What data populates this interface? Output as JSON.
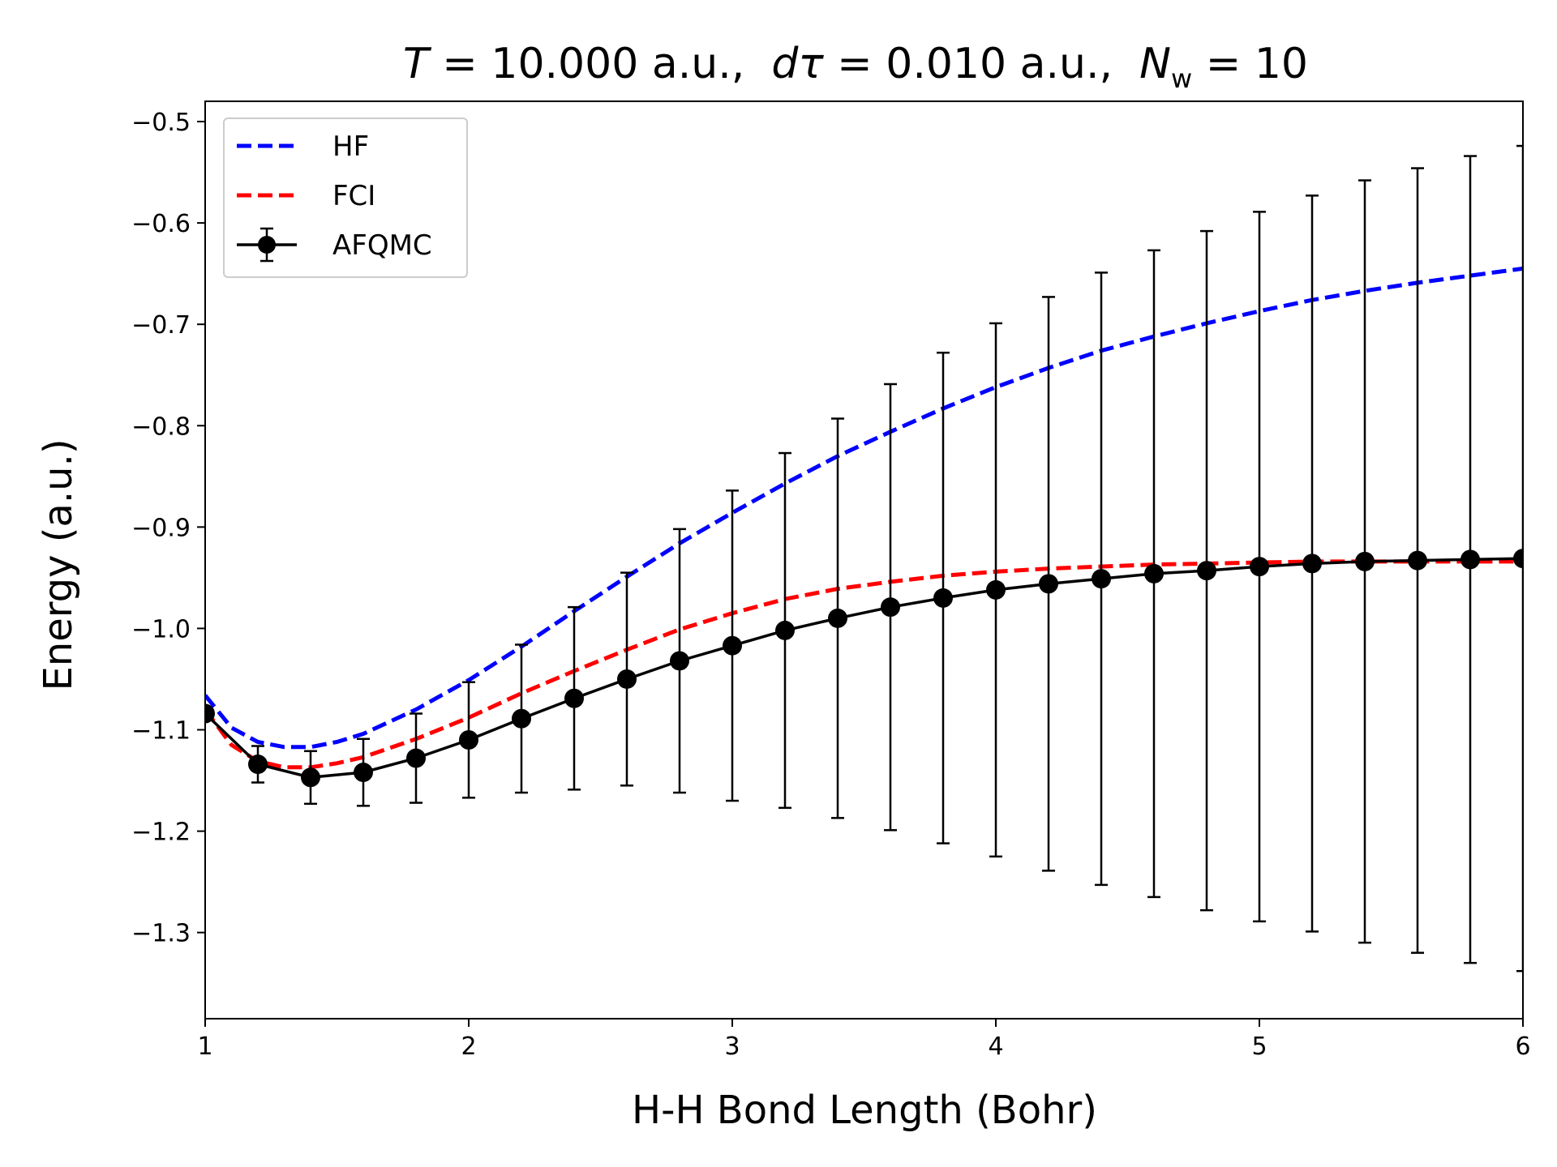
{
  "chart_data": {
    "type": "line",
    "title": {
      "T_symbol": "T",
      "T_value": " = 10.000 a.u.,  ",
      "dtau_d": "d",
      "dtau_tau": "τ",
      "dtau_value": " = 0.010 a.u.,  ",
      "Nw_symbol": "N",
      "Nw_sub": "w",
      "Nw_value": " = 10"
    },
    "xlabel": "H-H Bond Length (Bohr)",
    "ylabel": "Energy (a.u.)",
    "xlim": [
      1,
      6
    ],
    "ylim": [
      -1.385,
      -0.48
    ],
    "xticks": [
      1,
      2,
      3,
      4,
      5,
      6
    ],
    "xtick_labels": [
      "1",
      "2",
      "3",
      "4",
      "5",
      "6"
    ],
    "yticks": [
      -0.5,
      -0.6,
      -0.7,
      -0.8,
      -0.9,
      -1.0,
      -1.1,
      -1.2,
      -1.3
    ],
    "ytick_labels": [
      "−0.5",
      "−0.6",
      "−0.7",
      "−0.8",
      "−0.9",
      "−1.0",
      "−1.1",
      "−1.2",
      "−1.3"
    ],
    "grid": false,
    "legend_position": "top-left",
    "series": [
      {
        "name": "HF",
        "style": "dashed",
        "color": "#0000ff",
        "x": [
          1.0,
          1.1,
          1.2,
          1.3,
          1.4,
          1.5,
          1.6,
          1.8,
          2.0,
          2.2,
          2.4,
          2.6,
          2.8,
          3.0,
          3.2,
          3.4,
          3.6,
          3.8,
          4.0,
          4.2,
          4.4,
          4.6,
          4.8,
          5.0,
          5.2,
          5.4,
          5.6,
          5.8,
          6.0
        ],
        "y": [
          -1.066,
          -1.098,
          -1.112,
          -1.117,
          -1.117,
          -1.112,
          -1.104,
          -1.08,
          -1.051,
          -1.018,
          -0.983,
          -0.949,
          -0.916,
          -0.886,
          -0.857,
          -0.83,
          -0.806,
          -0.783,
          -0.762,
          -0.743,
          -0.726,
          -0.712,
          -0.699,
          -0.687,
          -0.676,
          -0.667,
          -0.659,
          -0.652,
          -0.645
        ]
      },
      {
        "name": "FCI",
        "style": "dashed",
        "color": "#ff0000",
        "x": [
          1.0,
          1.1,
          1.2,
          1.3,
          1.4,
          1.5,
          1.6,
          1.8,
          2.0,
          2.2,
          2.4,
          2.6,
          2.8,
          3.0,
          3.2,
          3.4,
          3.6,
          3.8,
          4.0,
          4.2,
          4.4,
          4.6,
          4.8,
          5.0,
          5.2,
          5.4,
          5.6,
          5.8,
          6.0
        ],
        "y": [
          -1.08,
          -1.115,
          -1.131,
          -1.137,
          -1.137,
          -1.133,
          -1.127,
          -1.109,
          -1.088,
          -1.064,
          -1.042,
          -1.021,
          -1.001,
          -0.985,
          -0.971,
          -0.961,
          -0.954,
          -0.948,
          -0.944,
          -0.941,
          -0.939,
          -0.937,
          -0.936,
          -0.935,
          -0.934,
          -0.934,
          -0.934,
          -0.934,
          -0.934
        ]
      },
      {
        "name": "AFQMC",
        "style": "solid-markers-errorbars",
        "color": "#000000",
        "x": [
          1.0,
          1.2,
          1.4,
          1.6,
          1.8,
          2.0,
          2.2,
          2.4,
          2.6,
          2.8,
          3.0,
          3.2,
          3.4,
          3.6,
          3.8,
          4.0,
          4.2,
          4.4,
          4.6,
          4.8,
          5.0,
          5.2,
          5.4,
          5.6,
          5.8,
          6.0
        ],
        "y": [
          -1.084,
          -1.134,
          -1.147,
          -1.142,
          -1.128,
          -1.11,
          -1.089,
          -1.069,
          -1.05,
          -1.032,
          -1.017,
          -1.002,
          -0.99,
          -0.979,
          -0.97,
          -0.962,
          -0.956,
          -0.951,
          -0.946,
          -0.943,
          -0.939,
          -0.936,
          -0.934,
          -0.933,
          -0.932,
          -0.931
        ],
        "yerr": [
          0.005,
          0.018,
          0.026,
          0.033,
          0.044,
          0.057,
          0.073,
          0.09,
          0.105,
          0.13,
          0.153,
          0.175,
          0.197,
          0.22,
          0.242,
          0.263,
          0.283,
          0.302,
          0.319,
          0.335,
          0.35,
          0.363,
          0.376,
          0.387,
          0.398,
          0.407
        ]
      }
    ]
  }
}
